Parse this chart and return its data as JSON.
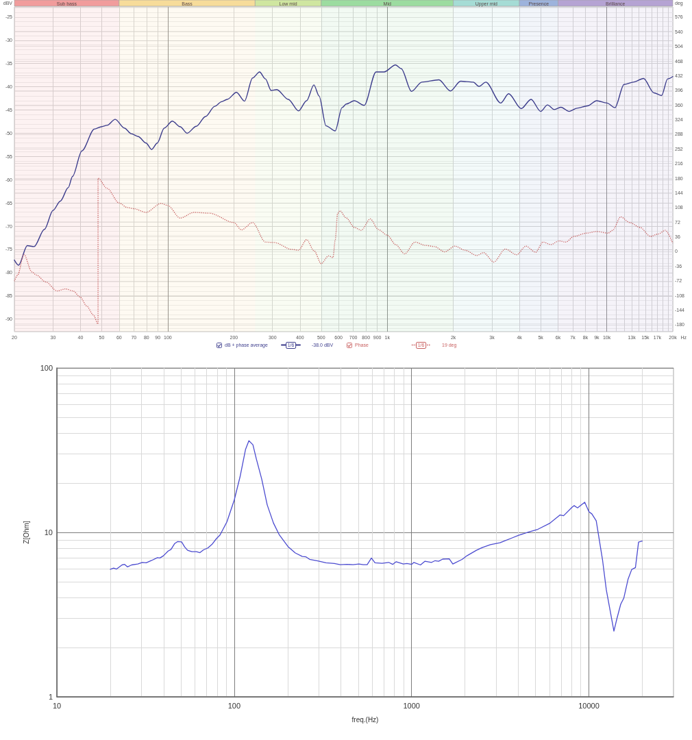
{
  "chart_data": [
    {
      "type": "line",
      "xlabel": "Hz",
      "ylabel": "dBV",
      "y2label": "deg",
      "series": [
        {
          "name": "dB + phase average",
          "color": "#3c3c8c",
          "line_style": "solid",
          "x": [
            20,
            20.9,
            22.9,
            24.6,
            27.4,
            30,
            32.4,
            35.2,
            36.8,
            40.6,
            46.3,
            49.8,
            52.9,
            57.6,
            63.5,
            68.1,
            73.3,
            79.6,
            84.4,
            89.6,
            96.3,
            104.9,
            113.9,
            122.4,
            134.9,
            148.6,
            163.7,
            176,
            186.6,
            205.6,
            223.6,
            243.5,
            261.9,
            278.5,
            295.6,
            313.7,
            353.8,
            394.4,
            428.9,
            463.1,
            489.2,
            525.8,
            578.9,
            622.2,
            651,
            708,
            785,
            889,
            967,
            1091,
            1158,
            1289,
            1436,
            1719,
            1940,
            2158,
            2464,
            2617,
            2813,
            3288,
            3574,
            4075,
            4519,
            4999,
            5370,
            5770,
            6180,
            6746,
            7339,
            8170,
            8995,
            10024,
            10896,
            11990,
            13206,
            14718,
            16395,
            17769,
            18942,
            20000
          ],
          "values": [
            -77.3,
            -78.4,
            -74.2,
            -74.4,
            -70.7,
            -66.6,
            -64.6,
            -61.7,
            -59.3,
            -53.8,
            -49.1,
            -48.6,
            -48.3,
            -47.0,
            -48.9,
            -50.1,
            -50.7,
            -52.1,
            -53.5,
            -52.1,
            -48.9,
            -47.4,
            -48.6,
            -50.0,
            -48.5,
            -46.4,
            -44.2,
            -43.2,
            -42.7,
            -41.2,
            -43.1,
            -38.1,
            -36.8,
            -38.3,
            -40.8,
            -40.6,
            -42.7,
            -45.2,
            -43.0,
            -39.6,
            -42.0,
            -48.4,
            -49.5,
            -44.5,
            -43.7,
            -43.0,
            -44.0,
            -36.8,
            -36.8,
            -35.3,
            -36.1,
            -41.0,
            -39.0,
            -38.5,
            -40.9,
            -38.8,
            -39.0,
            -39.9,
            -39.0,
            -43.5,
            -41.5,
            -44.7,
            -42.7,
            -45.3,
            -43.9,
            -44.9,
            -44.4,
            -45.3,
            -44.6,
            -44.1,
            -43.0,
            -43.5,
            -44.5,
            -39.5,
            -39.0,
            -38.2,
            -41.3,
            -41.9,
            -38.3,
            -37.8
          ]
        },
        {
          "name": "Phase",
          "color": "#c86060",
          "line_style": "dotted",
          "axis": "y2",
          "x": [
            20,
            20.7,
            22.1,
            24,
            25.2,
            27.8,
            31.3,
            34.2,
            37,
            39.9,
            42.7,
            45.8,
            48.1,
            48.1,
            52.9,
            60,
            65.3,
            70.1,
            79.6,
            93.1,
            100,
            113.9,
            131.6,
            155,
            200,
            216.4,
            243.5,
            278.5,
            305.5,
            367.4,
            394.4,
            428.9,
            465,
            500,
            539.5,
            565.8,
            579.5,
            593.7,
            608.1,
            651,
            708,
            761,
            837,
            910,
            1000,
            1091,
            1200,
            1337,
            1490,
            1640,
            1826,
            2033,
            2265,
            2554,
            2747,
            3058,
            3447,
            3887,
            4281,
            4742,
            5122,
            5570,
            6057,
            6510,
            7080,
            8076,
            8995,
            10143,
            10640,
            11574,
            12740,
            14193,
            15813,
            17184,
            18485,
            20000
          ],
          "values": [
            -73,
            -58,
            -7,
            -50,
            -58,
            -75,
            -97,
            -92,
            -97,
            -112,
            -134,
            -156,
            -178,
            180,
            155,
            119,
            108,
            105,
            96,
            118,
            113,
            82,
            96,
            94,
            71,
            53,
            71,
            23,
            22,
            5,
            3,
            29,
            1,
            -30,
            -11,
            -15,
            29,
            93,
            100,
            82,
            59,
            52,
            80,
            54,
            40,
            17,
            -6,
            23,
            15,
            12,
            -1,
            13,
            3,
            -10,
            -3,
            -26,
            6,
            -8,
            13,
            -2,
            23,
            17,
            26,
            23,
            37,
            45,
            49,
            45,
            52,
            85,
            71,
            59,
            37,
            43,
            52,
            20
          ]
        }
      ],
      "xlim": [
        20,
        20000
      ],
      "xticks": [
        20,
        30,
        40,
        50,
        60,
        70,
        80,
        90,
        100,
        200,
        300,
        400,
        500,
        600,
        700,
        800,
        900,
        {
          "value": 1000,
          "label": "1k"
        },
        {
          "value": 2000,
          "label": "2k"
        },
        {
          "value": 3000,
          "label": "3k"
        },
        {
          "value": 4000,
          "label": "4k"
        },
        {
          "value": 5000,
          "label": "5k"
        },
        {
          "value": 6000,
          "label": "6k"
        },
        {
          "value": 7000,
          "label": "7k"
        },
        {
          "value": 8000,
          "label": "8k"
        },
        {
          "value": 9000,
          "label": "9k"
        },
        {
          "value": 10000,
          "label": "10k"
        },
        {
          "value": 11000,
          "label": null
        },
        {
          "value": 12000,
          "label": null
        },
        {
          "value": 13000,
          "label": "13k"
        },
        {
          "value": 14000,
          "label": null
        },
        {
          "value": 15000,
          "label": "15k"
        },
        {
          "value": 16000,
          "label": null
        },
        {
          "value": 17000,
          "label": "17k"
        },
        {
          "value": 18000,
          "label": null
        },
        {
          "value": 19000,
          "label": null
        },
        {
          "value": 20000,
          "label": "20k"
        }
      ],
      "ylim": [
        -92.7,
        -22.8
      ],
      "yticks": [
        -25,
        -30,
        -35,
        -40,
        -45,
        -50,
        -55,
        -60,
        -65,
        -70,
        -75,
        -80,
        -85,
        -90
      ],
      "y2lim": [
        -197,
        601
      ],
      "y2ticks": [
        576,
        540,
        504,
        468,
        432,
        396,
        360,
        324,
        288,
        252,
        216,
        180,
        144,
        108,
        72,
        36,
        0,
        -36,
        -72,
        -108,
        -144,
        -180
      ],
      "log": "x",
      "grid": true,
      "legend": "bottom",
      "marker": "none",
      "bands": [
        {
          "axis": "x",
          "from": 20,
          "to": 60,
          "label": "Sub bass",
          "color": "#f19c9c"
        },
        {
          "axis": "x",
          "from": 60,
          "to": 250,
          "label": "Bass",
          "color": "#f7dc9a"
        },
        {
          "axis": "x",
          "from": 250,
          "to": 500,
          "label": "Low mid",
          "color": "#cfe6a0"
        },
        {
          "axis": "x",
          "from": 500,
          "to": 2000,
          "label": "Mid",
          "color": "#9cdca0"
        },
        {
          "axis": "x",
          "from": 2000,
          "to": 4000,
          "label": "Upper mid",
          "color": "#a5dcd5"
        },
        {
          "axis": "x",
          "from": 4000,
          "to": 6000,
          "label": "Presence",
          "color": "#9db3dc"
        },
        {
          "axis": "x",
          "from": 6000,
          "to": 20000,
          "label": "Brilliance",
          "color": "#b5a3d3"
        }
      ],
      "annotations": [
        "1/6",
        "-38.0 dBV",
        "1/6",
        "19 deg"
      ]
    },
    {
      "type": "line",
      "xlabel": "freq.(Hz)",
      "ylabel": "Z[Ohm]",
      "x": [
        20,
        20.9,
        21.7,
        23.3,
        24.1,
        25,
        26.4,
        28.6,
        30.3,
        31.9,
        34.2,
        36.9,
        38.1,
        39.9,
        42.4,
        44,
        46.2,
        47.9,
        50.5,
        52.6,
        54.6,
        57.7,
        61.2,
        64.1,
        67.1,
        71,
        74.9,
        79.3,
        83.2,
        91,
        100,
        107.9,
        115.8,
        121,
        127.5,
        133.4,
        142.9,
        153.5,
        166.5,
        179.1,
        202,
        221,
        242,
        254,
        266,
        296,
        329,
        367,
        396,
        434,
        468,
        505,
        534,
        562,
        594,
        622,
        682,
        743,
        783,
        819,
        899,
        941,
        1000,
        1031,
        1123,
        1191,
        1297,
        1358,
        1421,
        1498,
        1632,
        1709,
        1932,
        2053,
        2321,
        2504,
        2786,
        3150,
        3349,
        3674,
        4024,
        4552,
        5153,
        6000,
        6878,
        7202,
        8020,
        8249,
        8630,
        9475,
        10000,
        10400,
        11000,
        11950,
        12540,
        13840,
        14400,
        15120,
        15730,
        16620,
        17440,
        18300,
        19060,
        20000
      ],
      "series": [
        {
          "color": "#4c4cd0",
          "values": [
            5.97,
            6.07,
            5.98,
            6.34,
            6.39,
            6.17,
            6.34,
            6.42,
            6.57,
            6.53,
            6.75,
            7.02,
            6.99,
            7.21,
            7.7,
            7.88,
            8.56,
            8.79,
            8.75,
            8.15,
            7.78,
            7.63,
            7.63,
            7.53,
            7.83,
            8.04,
            8.45,
            9.15,
            9.64,
            11.6,
            15.7,
            21.8,
            31.9,
            36.1,
            34.1,
            27.9,
            21.1,
            14.7,
            11.4,
            9.71,
            8.15,
            7.5,
            7.14,
            7.1,
            6.86,
            6.71,
            6.53,
            6.47,
            6.36,
            6.39,
            6.36,
            6.42,
            6.36,
            6.36,
            6.98,
            6.53,
            6.49,
            6.57,
            6.39,
            6.63,
            6.42,
            6.47,
            6.39,
            6.57,
            6.34,
            6.68,
            6.57,
            6.73,
            6.68,
            6.88,
            6.91,
            6.42,
            6.86,
            7.21,
            7.78,
            8.09,
            8.42,
            8.65,
            8.88,
            9.24,
            9.61,
            10.03,
            10.44,
            11.34,
            12.77,
            12.63,
            14.2,
            14.55,
            14.1,
            15.26,
            13.37,
            12.94,
            11.76,
            6.75,
            4.47,
            2.51,
            3.0,
            3.66,
            3.98,
            5.18,
            5.95,
            6.11,
            8.73,
            8.85
          ]
        }
      ],
      "xlim": [
        10,
        30000
      ],
      "xticks": [
        10,
        100,
        1000,
        10000
      ],
      "ylim": [
        1,
        100
      ],
      "yticks": [
        1,
        10,
        100
      ],
      "log": "xy",
      "grid": true,
      "marker": "none"
    }
  ]
}
